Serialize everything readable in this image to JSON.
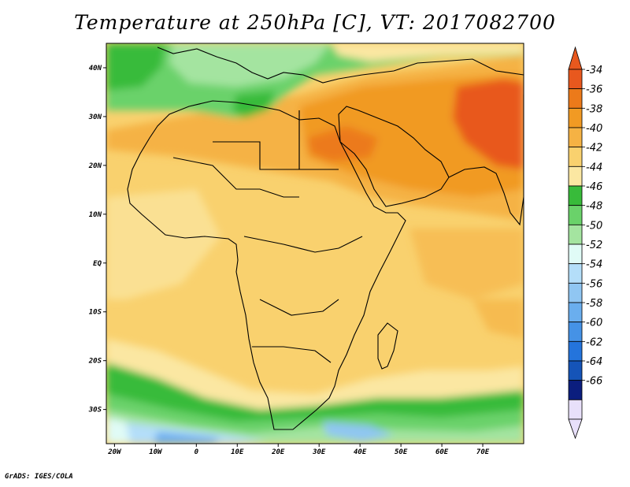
{
  "title": "Temperature at 250hPa [C], VT: 2017082700",
  "footer": "GrADS: IGES/COLA",
  "map": {
    "lon_range": [
      -22,
      80
    ],
    "lat_range": [
      -37,
      45
    ],
    "lat_ticks": [
      {
        "value": 40,
        "label": "40N"
      },
      {
        "value": 30,
        "label": "30N"
      },
      {
        "value": 20,
        "label": "20N"
      },
      {
        "value": 10,
        "label": "10N"
      },
      {
        "value": 0,
        "label": "EQ"
      },
      {
        "value": -10,
        "label": "10S"
      },
      {
        "value": -20,
        "label": "20S"
      },
      {
        "value": -30,
        "label": "30S"
      }
    ],
    "lon_ticks": [
      {
        "value": -20,
        "label": "20W"
      },
      {
        "value": -10,
        "label": "10W"
      },
      {
        "value": 0,
        "label": "0"
      },
      {
        "value": 10,
        "label": "10E"
      },
      {
        "value": 20,
        "label": "20E"
      },
      {
        "value": 30,
        "label": "30E"
      },
      {
        "value": 40,
        "label": "40E"
      },
      {
        "value": 50,
        "label": "50E"
      },
      {
        "value": 60,
        "label": "60E"
      },
      {
        "value": 70,
        "label": "70E"
      }
    ]
  },
  "colorbar": {
    "levels": [
      "-34",
      "-36",
      "-38",
      "-40",
      "-42",
      "-44",
      "-46",
      "-48",
      "-50",
      "-52",
      "-54",
      "-56",
      "-58",
      "-60",
      "-62",
      "-64",
      "-66"
    ],
    "colors": [
      "#e8581e",
      "#ec7a1a",
      "#f19a23",
      "#f5b244",
      "#f9d16e",
      "#fbe7a2",
      "#38bb3a",
      "#6ad26a",
      "#a4e4a0",
      "#e0fbf6",
      "#b4def9",
      "#90c6f2",
      "#6aaeee",
      "#4592e6",
      "#2474dc",
      "#1554b8",
      "#0b1e7e",
      "#e8e0fa"
    ],
    "triangle_top": "#e8581e",
    "triangle_bottom": "#e8e0fa"
  }
}
